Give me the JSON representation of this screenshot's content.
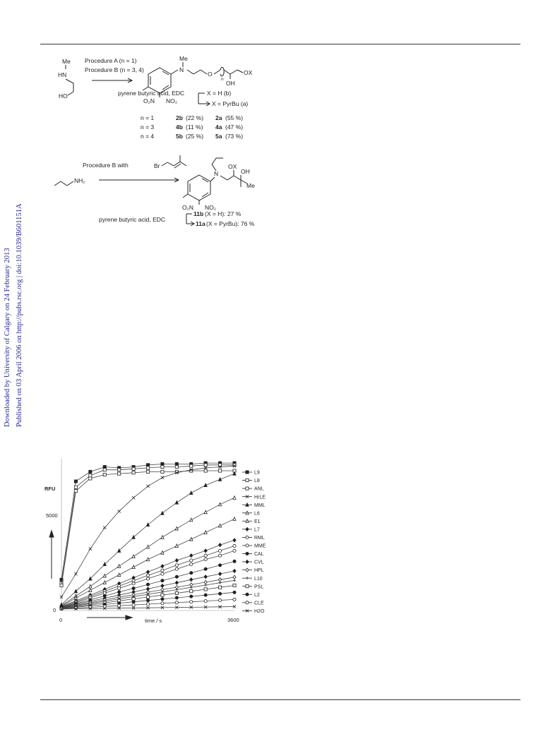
{
  "sidebar": {
    "line1": "Downloaded by University of Calgary on 24 February 2013",
    "line2": "Published on 03 April 2006 on http://pubs.rsc.org | doi:10.1039/B601151A"
  },
  "scheme1": {
    "reactant_me": "Me",
    "reactant_hn": "HN",
    "reactant_ho": "HO",
    "procedure_a": "Procedure A (n = 1)",
    "procedure_b": "Procedure B (n = 3, 4)",
    "product_me": "Me",
    "product_n": "N",
    "product_o": "O",
    "product_n_sub": "n",
    "product_ox": "OX",
    "product_oh": "OH",
    "product_o2n": "O₂N",
    "product_no2": "NO₂",
    "reagent": "pyrene butyric acid, EDC",
    "branch_b": "X = H (b)",
    "branch_a": "X = PyrBu (a)",
    "results": [
      {
        "n": "n = 1",
        "b_cpd": "2b",
        "b_yield": "(22 %)",
        "a_cpd": "2a",
        "a_yield": "(55 %)"
      },
      {
        "n": "n = 3",
        "b_cpd": "4b",
        "b_yield": "(11 %)",
        "a_cpd": "4a",
        "a_yield": "(47 %)"
      },
      {
        "n": "n = 4",
        "b_cpd": "5b",
        "b_yield": "(25 %)",
        "a_cpd": "5a",
        "a_yield": "(73 %)"
      }
    ]
  },
  "scheme2": {
    "procedure": "Procedure B with",
    "br": "Br",
    "reactant_nh2": "NH₂",
    "product_n": "N",
    "product_ox": "OX",
    "product_oh": "OH",
    "product_me": "Me",
    "product_o2n": "O₂N",
    "product_no2": "NO₂",
    "reagent": "pyrene butyric acid, EDC",
    "branch_b_cpd": "11b",
    "branch_b_text": "(X = H): 27 %",
    "branch_a_cpd": "11a",
    "branch_a_text": "(X = PyrBu): 76 %"
  },
  "chart_data": {
    "type": "line",
    "title": "",
    "ylabel": "RFU",
    "xlabel": "time / s",
    "x_ticks": [
      "0",
      "3600"
    ],
    "y_ticks": [
      "0",
      "5000"
    ],
    "xlim": [
      0,
      3600
    ],
    "ylim": [
      0,
      7800
    ],
    "legend_position": "right",
    "x": [
      0,
      300,
      600,
      900,
      1200,
      1500,
      1800,
      2100,
      2400,
      2700,
      3000,
      3300,
      3600
    ],
    "series": [
      {
        "name": "L9",
        "marker": "filled-square",
        "values": [
          1600,
          6700,
          7200,
          7450,
          7400,
          7450,
          7550,
          7600,
          7600,
          7600,
          7650,
          7650,
          7650
        ]
      },
      {
        "name": "L8",
        "marker": "open-square",
        "values": [
          1400,
          6400,
          7000,
          7300,
          7300,
          7350,
          7400,
          7450,
          7450,
          7500,
          7550,
          7550,
          7550
        ]
      },
      {
        "name": "ANL",
        "marker": "open-square-dot",
        "values": [
          1300,
          6200,
          6850,
          7050,
          7100,
          7150,
          7200,
          7200,
          7200,
          7250,
          7250,
          7250,
          7250
        ]
      },
      {
        "name": "HrLE",
        "marker": "x",
        "values": [
          700,
          1900,
          3200,
          4300,
          5150,
          5850,
          6450,
          6900,
          7150,
          7300,
          7400,
          7450,
          7500
        ]
      },
      {
        "name": "MML",
        "marker": "filled-triangle",
        "values": [
          300,
          1000,
          1650,
          2400,
          3100,
          3800,
          4450,
          5050,
          5600,
          6100,
          6500,
          6800,
          7100
        ]
      },
      {
        "name": "L6",
        "marker": "open-triangle",
        "values": [
          250,
          750,
          1250,
          1800,
          2300,
          2800,
          3300,
          3800,
          4250,
          4700,
          5100,
          5500,
          5850
        ]
      },
      {
        "name": "E1",
        "marker": "open-triangle",
        "values": [
          220,
          650,
          1050,
          1450,
          1850,
          2250,
          2650,
          3000,
          3350,
          3700,
          4050,
          4400,
          4750
        ]
      },
      {
        "name": "L7",
        "marker": "filled-diamond",
        "values": [
          200,
          500,
          800,
          1100,
          1400,
          1700,
          2000,
          2300,
          2600,
          2850,
          3100,
          3400,
          3650
        ]
      },
      {
        "name": "RML",
        "marker": "open-circle",
        "values": [
          180,
          450,
          720,
          1000,
          1270,
          1550,
          1820,
          2080,
          2350,
          2600,
          2850,
          3100,
          3350
        ]
      },
      {
        "name": "MME",
        "marker": "open-circle",
        "values": [
          160,
          400,
          650,
          900,
          1150,
          1400,
          1650,
          1900,
          2150,
          2400,
          2650,
          2850,
          3100
        ]
      },
      {
        "name": "CAL",
        "marker": "filled-circle",
        "values": [
          150,
          350,
          550,
          760,
          960,
          1150,
          1350,
          1550,
          1750,
          1950,
          2150,
          2350,
          2550
        ]
      },
      {
        "name": "CVL",
        "marker": "filled-diamond",
        "values": [
          140,
          320,
          480,
          640,
          800,
          960,
          1120,
          1280,
          1440,
          1600,
          1750,
          1900,
          2050
        ]
      },
      {
        "name": "HPL",
        "marker": "open-diamond",
        "values": [
          130,
          270,
          410,
          550,
          690,
          820,
          950,
          1080,
          1210,
          1340,
          1470,
          1600,
          1730
        ]
      },
      {
        "name": "L10",
        "marker": "plus",
        "values": [
          120,
          240,
          360,
          480,
          600,
          720,
          840,
          960,
          1080,
          1200,
          1320,
          1440,
          1560
        ]
      },
      {
        "name": "PSL",
        "marker": "open-square",
        "values": [
          110,
          200,
          300,
          400,
          500,
          600,
          700,
          800,
          900,
          1000,
          1100,
          1200,
          1300
        ]
      },
      {
        "name": "L2",
        "marker": "filled-circle",
        "values": [
          100,
          170,
          240,
          310,
          380,
          450,
          520,
          590,
          660,
          730,
          800,
          870,
          940
        ]
      },
      {
        "name": "CLE",
        "marker": "open-circle",
        "values": [
          90,
          130,
          170,
          210,
          250,
          290,
          330,
          370,
          410,
          450,
          490,
          530,
          570
        ]
      },
      {
        "name": "H2O",
        "marker": "x-line",
        "values": [
          80,
          90,
          100,
          110,
          120,
          130,
          140,
          150,
          160,
          170,
          180,
          190,
          200
        ]
      }
    ]
  }
}
